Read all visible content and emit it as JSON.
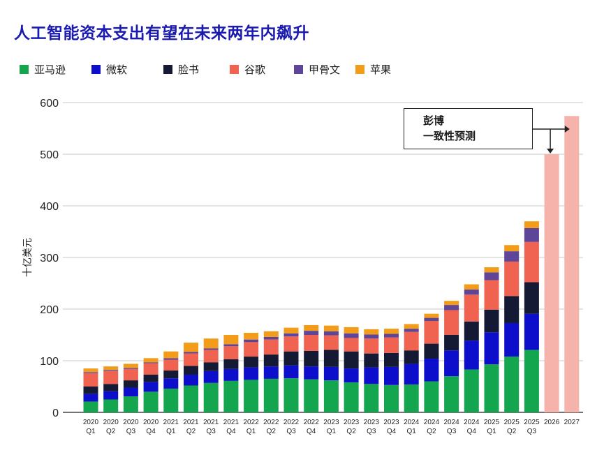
{
  "title": "人工智能资本支出有望在未来两年内飙升",
  "legend": [
    {
      "name": "亚马逊",
      "color": "#13a64f"
    },
    {
      "name": "微软",
      "color": "#0d0dcc"
    },
    {
      "name": "脸书",
      "color": "#141a33"
    },
    {
      "name": "谷歌",
      "color": "#ef6350"
    },
    {
      "name": "甲骨文",
      "color": "#5e4598"
    },
    {
      "name": "苹果",
      "color": "#f29c1a"
    }
  ],
  "annotation": {
    "line1": "彭博",
    "line2": "一致性预测"
  },
  "forecast_color": "#f5b3ab",
  "chart_data": {
    "type": "bar",
    "stacked": true,
    "title": "人工智能资本支出有望在未来两年内飙升",
    "ylabel": "十亿美元",
    "xlabel": "",
    "ylim": [
      0,
      600
    ],
    "yticks": [
      0,
      100,
      200,
      300,
      400,
      500,
      600
    ],
    "categories": [
      {
        "year": "2020",
        "q": "Q1"
      },
      {
        "year": "2020",
        "q": "Q2"
      },
      {
        "year": "2020",
        "q": "Q3"
      },
      {
        "year": "2020",
        "q": "Q4"
      },
      {
        "year": "2021",
        "q": "Q1"
      },
      {
        "year": "2021",
        "q": "Q2"
      },
      {
        "year": "2021",
        "q": "Q3"
      },
      {
        "year": "2021",
        "q": "Q4"
      },
      {
        "year": "2022",
        "q": "Q1"
      },
      {
        "year": "2022",
        "q": "Q2"
      },
      {
        "year": "2022",
        "q": "Q3"
      },
      {
        "year": "2022",
        "q": "Q4"
      },
      {
        "year": "2023",
        "q": "Q1"
      },
      {
        "year": "2023",
        "q": "Q2"
      },
      {
        "year": "2023",
        "q": "Q3"
      },
      {
        "year": "2023",
        "q": "Q4"
      },
      {
        "year": "2024",
        "q": "Q1"
      },
      {
        "year": "2024",
        "q": "Q2"
      },
      {
        "year": "2024",
        "q": "Q3"
      },
      {
        "year": "2024",
        "q": "Q4"
      },
      {
        "year": "2025",
        "q": "Q1"
      },
      {
        "year": "2025",
        "q": "Q2"
      },
      {
        "year": "2025",
        "q": "Q3"
      },
      {
        "year": "2026",
        "q": ""
      },
      {
        "year": "2027",
        "q": ""
      }
    ],
    "series": [
      {
        "name": "亚马逊",
        "values": [
          21,
          25,
          31,
          40,
          46,
          52,
          57,
          61,
          63,
          65,
          66,
          64,
          62,
          58,
          55,
          53,
          54,
          60,
          70,
          83,
          93,
          108,
          121,
          null,
          null
        ]
      },
      {
        "name": "微软",
        "values": [
          15,
          16,
          17,
          19,
          20,
          21,
          23,
          23,
          24,
          24,
          25,
          25,
          26,
          27,
          32,
          35,
          40,
          44,
          50,
          56,
          62,
          65,
          70,
          null,
          null
        ]
      },
      {
        "name": "脸书",
        "values": [
          14,
          14,
          14,
          14,
          15,
          17,
          17,
          19,
          21,
          23,
          27,
          30,
          33,
          33,
          27,
          27,
          26,
          29,
          30,
          37,
          44,
          52,
          61,
          null,
          null
        ]
      },
      {
        "name": "谷歌",
        "values": [
          26,
          25,
          22,
          22,
          21,
          24,
          24,
          25,
          28,
          29,
          29,
          31,
          28,
          26,
          29,
          30,
          36,
          44,
          48,
          52,
          57,
          67,
          78,
          null,
          null
        ]
      },
      {
        "name": "甲骨文",
        "values": [
          2,
          2,
          2,
          2,
          3,
          3,
          3,
          4,
          5,
          5,
          6,
          8,
          8,
          9,
          8,
          7,
          6,
          6,
          10,
          10,
          15,
          20,
          27,
          null,
          null
        ]
      },
      {
        "name": "苹果",
        "values": [
          7,
          7,
          8,
          8,
          13,
          18,
          19,
          18,
          13,
          11,
          11,
          11,
          11,
          12,
          10,
          10,
          9,
          8,
          8,
          10,
          10,
          12,
          13,
          null,
          null
        ]
      }
    ],
    "forecast": {
      "name": "彭博 一致性预测",
      "categories": [
        "2026",
        "2027"
      ],
      "values": [
        500,
        574
      ]
    }
  }
}
